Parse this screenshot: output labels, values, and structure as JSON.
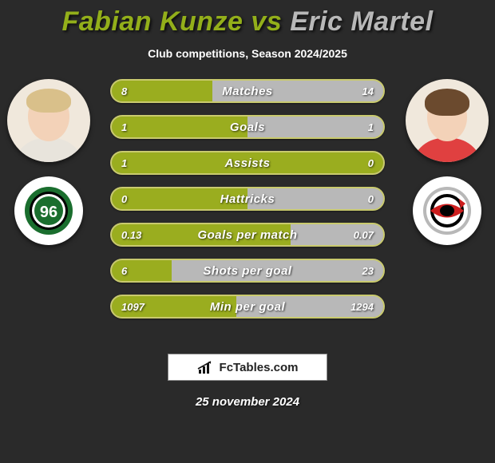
{
  "title": {
    "text": "Fabian Kunze vs Eric Martel",
    "color_left": "#93af1a",
    "color_right": "#b8b8b8",
    "fontsize": 34
  },
  "subtitle": "Club competitions, Season 2024/2025",
  "colors": {
    "background": "#2a2a2a",
    "text": "#ffffff",
    "player1_bar": "#9aad1f",
    "player2_bar": "#b8b8b8",
    "bar_border": "#c9ca6e"
  },
  "players": {
    "left": {
      "name": "Fabian Kunze",
      "avatar_bg": "#f0e8dc",
      "hair": "#d9c08a",
      "skin": "#f3d2b8",
      "jersey": "#e8e4dc"
    },
    "right": {
      "name": "Eric Martel",
      "avatar_bg": "#f0e8dc",
      "hair": "#6b4a2e",
      "skin": "#f3d2b8",
      "jersey": "#e04040"
    }
  },
  "clubs": {
    "left": {
      "name": "Hannover 96",
      "bg": "#ffffff",
      "ring_outer": "#1a6e2e",
      "ring_inner": "#000000",
      "text": "96"
    },
    "right": {
      "name": "Carolina-style",
      "bg": "#ffffff",
      "ring": "#b8b8b8",
      "swoosh": "#cc1e1e",
      "accent": "#000000"
    }
  },
  "stats": [
    {
      "label": "Matches",
      "left_value": "8",
      "right_value": "14",
      "left_pct": 37,
      "right_pct": 63
    },
    {
      "label": "Goals",
      "left_value": "1",
      "right_value": "1",
      "left_pct": 50,
      "right_pct": 50
    },
    {
      "label": "Assists",
      "left_value": "1",
      "right_value": "0",
      "left_pct": 100,
      "right_pct": 0
    },
    {
      "label": "Hattricks",
      "left_value": "0",
      "right_value": "0",
      "left_pct": 50,
      "right_pct": 50
    },
    {
      "label": "Goals per match",
      "left_value": "0.13",
      "right_value": "0.07",
      "left_pct": 66,
      "right_pct": 34
    },
    {
      "label": "Shots per goal",
      "left_value": "6",
      "right_value": "23",
      "left_pct": 22,
      "right_pct": 78
    },
    {
      "label": "Min per goal",
      "left_value": "1097",
      "right_value": "1294",
      "left_pct": 46,
      "right_pct": 54
    }
  ],
  "bar_style": {
    "height": 30,
    "gap": 15,
    "radius": 15,
    "label_fontsize": 15,
    "value_fontsize": 13
  },
  "footer": {
    "logo_text": "FcTables.com",
    "date": "25 november 2024"
  }
}
